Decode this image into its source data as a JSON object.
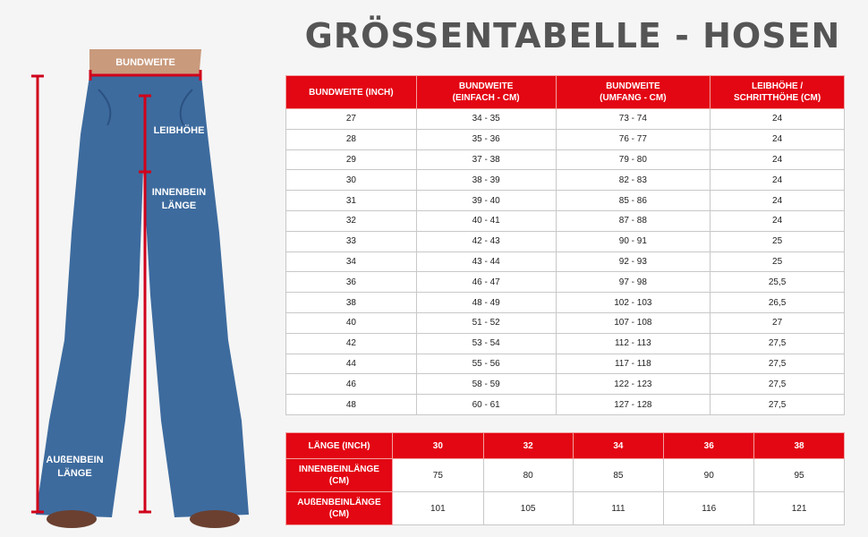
{
  "title": "GRÖSSENTABELLE - HOSEN",
  "figure": {
    "labels": {
      "waist": "BUNDWEITE",
      "rise": "LEIBHÖHE",
      "inseam": [
        "INNENBEIN",
        "LÄNGE"
      ],
      "outseam": [
        "AUßENBEIN",
        "LÄNGE"
      ]
    },
    "colors": {
      "denim": "#3d6b9e",
      "measure": "#d0021b"
    }
  },
  "waist_table": {
    "headers": [
      [
        "BUNDWEITE (INCH)"
      ],
      [
        "BUNDWEITE",
        "(EINFACH - CM)"
      ],
      [
        "BUNDWEITE",
        "(UMFANG - CM)"
      ],
      [
        "LEIBHÖHE /",
        "SCHRITTHÖHE (CM)"
      ]
    ],
    "rows": [
      [
        "27",
        "34 - 35",
        "73 - 74",
        "24"
      ],
      [
        "28",
        "35 - 36",
        "76 - 77",
        "24"
      ],
      [
        "29",
        "37 - 38",
        "79 - 80",
        "24"
      ],
      [
        "30",
        "38 - 39",
        "82 - 83",
        "24"
      ],
      [
        "31",
        "39 - 40",
        "85 - 86",
        "24"
      ],
      [
        "32",
        "40 - 41",
        "87 - 88",
        "24"
      ],
      [
        "33",
        "42 - 43",
        "90 - 91",
        "25"
      ],
      [
        "34",
        "43 - 44",
        "92 - 93",
        "25"
      ],
      [
        "36",
        "46 - 47",
        "97 - 98",
        "25,5"
      ],
      [
        "38",
        "48 - 49",
        "102 - 103",
        "26,5"
      ],
      [
        "40",
        "51 - 52",
        "107 - 108",
        "27"
      ],
      [
        "42",
        "53 - 54",
        "112 - 113",
        "27,5"
      ],
      [
        "44",
        "55 - 56",
        "117 - 118",
        "27,5"
      ],
      [
        "46",
        "58 - 59",
        "122 - 123",
        "27,5"
      ],
      [
        "48",
        "60 - 61",
        "127 - 128",
        "27,5"
      ]
    ]
  },
  "length_table": {
    "header_label": "LÄNGE (INCH)",
    "sizes": [
      "30",
      "32",
      "34",
      "36",
      "38"
    ],
    "rows": [
      {
        "label": [
          "INNENBEINLÄNGE",
          "(CM)"
        ],
        "values": [
          "75",
          "80",
          "85",
          "90",
          "95"
        ]
      },
      {
        "label": [
          "AUßENBEINLÄNGE",
          "(CM)"
        ],
        "values": [
          "101",
          "105",
          "111",
          "116",
          "121"
        ]
      }
    ]
  },
  "accent_color": "#e30613"
}
